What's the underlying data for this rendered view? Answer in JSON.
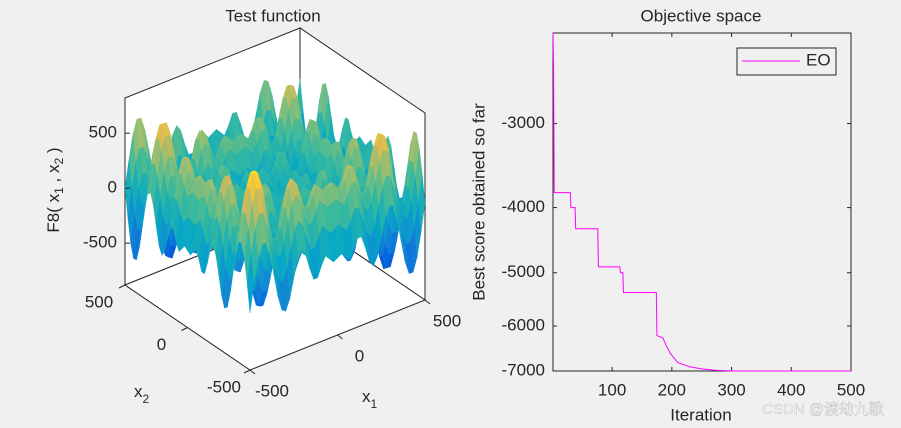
{
  "chart_data": [
    {
      "type": "surface",
      "title": "Test function",
      "zlabel": [
        "F8( x",
        "1",
        " , x",
        "2",
        " )"
      ],
      "xlabel": [
        "x",
        "1"
      ],
      "ylabel": [
        "x",
        "2"
      ],
      "xlim": [
        -500,
        500
      ],
      "ylim": [
        -500,
        500
      ],
      "zlim": [
        -880,
        820
      ],
      "xticks": [
        -500,
        0,
        500
      ],
      "yticks": [
        -500,
        0,
        500
      ],
      "zticks": [
        -500,
        0,
        500
      ]
    },
    {
      "type": "line",
      "title": "Objective space",
      "xlabel": "Iteration",
      "ylabel": "Best score obtained so far",
      "yscale": "log",
      "legend": "top-right",
      "xlim": [
        1,
        500
      ],
      "ylim": [
        -2200,
        -7000
      ],
      "xticks": [
        100,
        200,
        300,
        400,
        500
      ],
      "yticks": [
        -3000,
        -4000,
        -5000,
        -6000,
        -7000
      ],
      "x": [
        1,
        2,
        3,
        30,
        31,
        38,
        39,
        76,
        77,
        113,
        114,
        118,
        119,
        174,
        175,
        185,
        190,
        198,
        210,
        230,
        250,
        270,
        300,
        350,
        500
      ],
      "series": [
        {
          "name": "EO",
          "color": "#ff00ff",
          "values": [
            -2200,
            -2500,
            -3800,
            -3800,
            -4000,
            -4000,
            -4300,
            -4300,
            -4900,
            -4900,
            -5000,
            -5000,
            -5350,
            -5350,
            -6200,
            -6250,
            -6400,
            -6600,
            -6800,
            -6900,
            -6950,
            -6980,
            -7000,
            -7000,
            -7000
          ]
        }
      ]
    }
  ],
  "watermark": "CSDN @渡劫九歌"
}
